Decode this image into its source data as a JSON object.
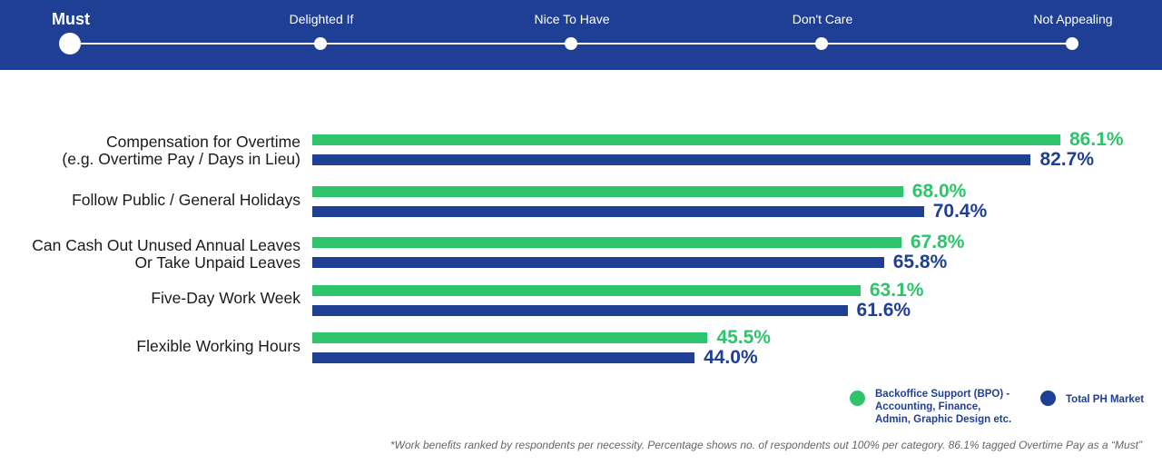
{
  "header": {
    "steps": [
      {
        "label": "Must",
        "active": true
      },
      {
        "label": "Delighted If",
        "active": false
      },
      {
        "label": "Nice To Have",
        "active": false
      },
      {
        "label": "Don't Care",
        "active": false
      },
      {
        "label": "Not Appealing",
        "active": false
      }
    ]
  },
  "colors": {
    "header_bg": "#1f3f94",
    "series_bpo": "#2ec46b",
    "series_total": "#1f3f94"
  },
  "legend": {
    "bpo": "Backoffice Support (BPO) -\nAccounting, Finance,\nAdmin, Graphic Design etc.",
    "total": "Total PH Market"
  },
  "footnote": "*Work benefits ranked by respondents per necessity. Percentage shows no. of respondents out 100% per category. 86.1% tagged Overtime Pay as a “Must”",
  "chart_data": {
    "type": "bar",
    "orientation": "horizontal",
    "categories": [
      "Compensation for Overtime\n(e.g. Overtime Pay / Days in Lieu)",
      "Follow Public / General Holidays",
      "Can Cash Out Unused Annual Leaves\nOr Take Unpaid Leaves",
      "Five-Day Work Week",
      "Flexible Working Hours"
    ],
    "series": [
      {
        "name": "Backoffice Support (BPO) - Accounting, Finance, Admin, Graphic Design etc.",
        "values": [
          86.1,
          68.0,
          67.8,
          63.1,
          45.5
        ],
        "labels": [
          "86.1%",
          "68.0%",
          "67.8%",
          "63.1%",
          "45.5%"
        ]
      },
      {
        "name": "Total PH Market",
        "values": [
          82.7,
          70.4,
          65.8,
          61.6,
          44.0
        ],
        "labels": [
          "82.7%",
          "70.4%",
          "65.8%",
          "61.6%",
          "44.0%"
        ]
      }
    ],
    "unit": "%",
    "xlim": [
      0,
      100
    ],
    "legend_position": "bottom-right",
    "grid": false
  }
}
